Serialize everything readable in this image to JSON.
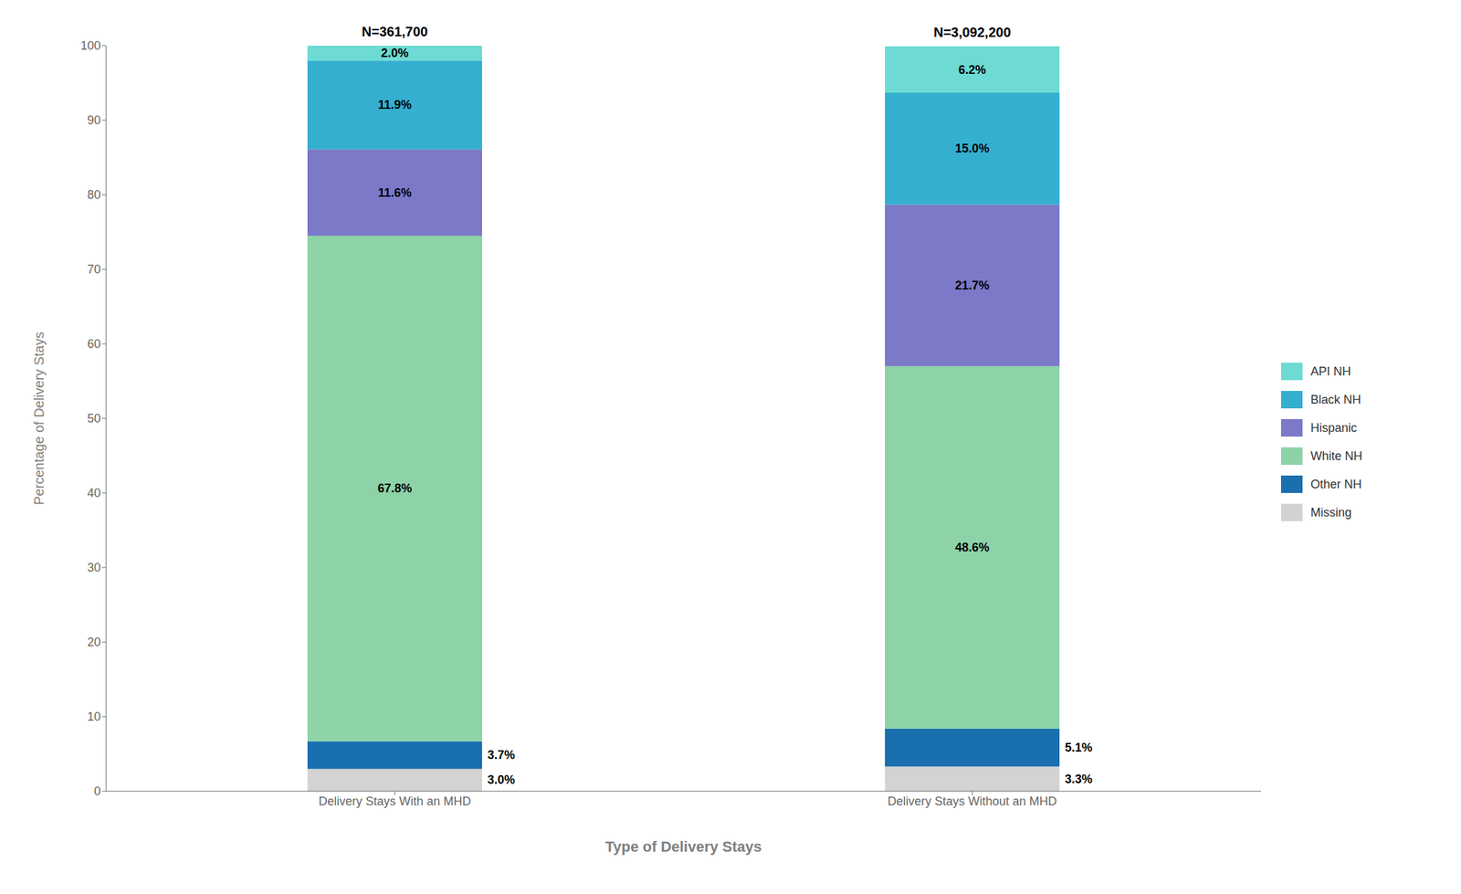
{
  "chart_data": {
    "type": "bar",
    "stacked": true,
    "categories": [
      "Delivery Stays With an MHD",
      "Delivery Stays Without an MHD"
    ],
    "series": [
      {
        "name": "Missing",
        "color": "#d3d3d3",
        "values": [
          3.0,
          3.3
        ],
        "value_labels": [
          "3.0%",
          "3.3%"
        ]
      },
      {
        "name": "Other NH",
        "color": "#1a6faf",
        "values": [
          3.7,
          5.1
        ],
        "value_labels": [
          "3.7%",
          "5.1%"
        ]
      },
      {
        "name": "White NH",
        "color": "#8dd3a7",
        "values": [
          67.8,
          48.6
        ],
        "value_labels": [
          "67.8%",
          "48.6%"
        ]
      },
      {
        "name": "Hispanic",
        "color": "#7b79c8",
        "values": [
          11.6,
          21.7
        ],
        "value_labels": [
          "11.6%",
          "21.7%"
        ]
      },
      {
        "name": "Black NH",
        "color": "#35afd0",
        "values": [
          11.9,
          15.0
        ],
        "value_labels": [
          "11.9%",
          "15.0%"
        ]
      },
      {
        "name": "API NH",
        "color": "#6ddbd4",
        "values": [
          2.0,
          6.2
        ],
        "value_labels": [
          "2.0%",
          "6.2%"
        ]
      }
    ],
    "annotations": [
      "N=361,700",
      "N=3,092,200"
    ],
    "xlabel": "Type of Delivery Stays",
    "ylabel": "Percentage of Delivery Stays",
    "ylim": [
      0,
      100
    ],
    "yticks": [
      0,
      10,
      20,
      30,
      40,
      50,
      60,
      70,
      80,
      90,
      100
    ],
    "grid": false,
    "legend": "right",
    "data_labels": true
  }
}
